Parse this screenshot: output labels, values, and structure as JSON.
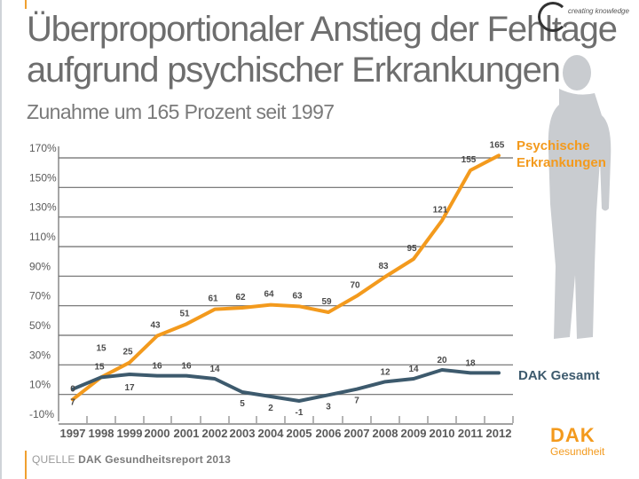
{
  "header": {
    "title_line1": "Überproportionaler Anstieg der Fehltage",
    "title_line2": "aufgrund psychischer Erkrankungen",
    "subtitle": "Zunahme um 165 Prozent seit 1997"
  },
  "legend": {
    "psych_line1": "Psychische",
    "psych_line2": "Erkrankungen",
    "dak": "DAK Gesamt"
  },
  "source": {
    "prefix": "QUELLE ",
    "text": "DAK Gesundheitsreport 2013"
  },
  "brand": {
    "word": "DAK",
    "sub": "Gesundheit",
    "top_logo_text": "creating knowledge"
  },
  "colors": {
    "psych": "#f39a1d",
    "dak": "#3d5a6d",
    "grid": "#6b6b6b"
  },
  "chart_data": {
    "type": "line",
    "y_tick_labels": [
      "170%",
      "150%",
      "130%",
      "110%",
      "90%",
      "70%",
      "50%",
      "30%",
      "10%",
      "-10%"
    ],
    "y_ticks": [
      170,
      150,
      130,
      110,
      90,
      70,
      50,
      30,
      10,
      -10
    ],
    "ylim": [
      -10,
      170
    ],
    "x": [
      "1997",
      "1998",
      "1999",
      "2000",
      "2001",
      "2002",
      "2003",
      "2004",
      "2005",
      "2006",
      "2007",
      "2008",
      "2009",
      "2010",
      "2011",
      "2012"
    ],
    "grid": true,
    "series": [
      {
        "name": "Psychische Erkrankungen",
        "values": [
          0,
          15,
          25,
          43,
          51,
          61,
          62,
          64,
          63,
          59,
          70,
          83,
          95,
          121,
          155,
          165
        ]
      },
      {
        "name": "DAK Gesamt",
        "values": [
          7,
          15,
          17,
          16,
          16,
          14,
          5,
          2,
          -1,
          3,
          7,
          12,
          14,
          20,
          18,
          18
        ]
      }
    ],
    "data_labels": [
      [
        "0",
        "15",
        "25",
        "43",
        "51",
        "61",
        "62",
        "64",
        "63",
        "59",
        "70",
        "83",
        "95",
        "121",
        "155",
        "165"
      ],
      [
        "7",
        "15",
        "17",
        "16",
        "16",
        "14",
        "5",
        "2",
        "-1",
        "3",
        "7",
        "12",
        "14",
        "20",
        "18",
        ""
      ]
    ]
  }
}
